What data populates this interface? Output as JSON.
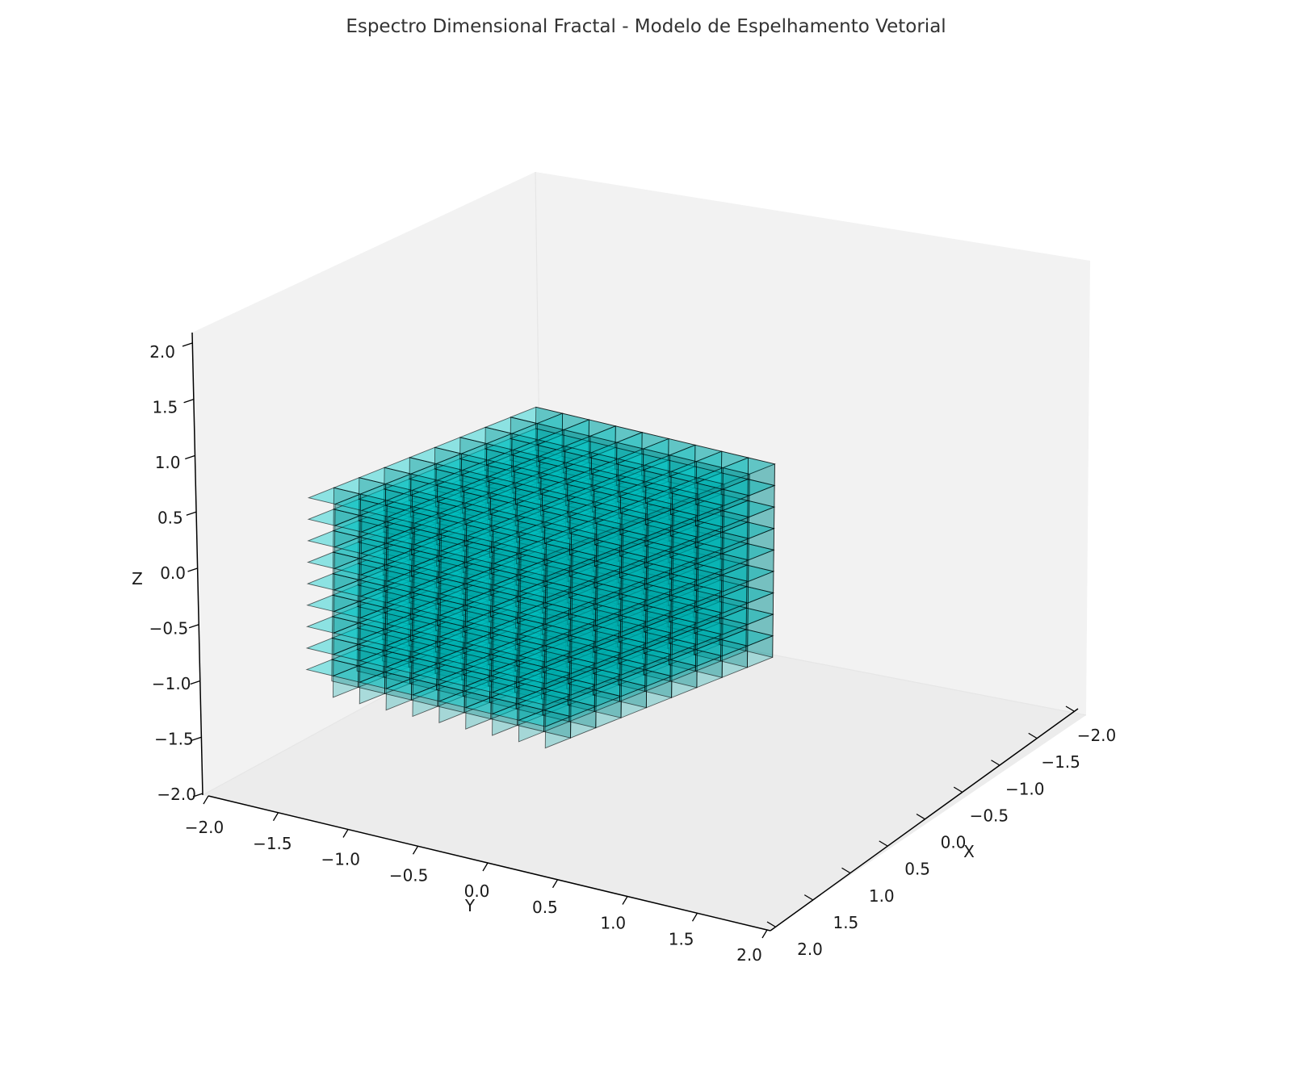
{
  "chart_data": {
    "type": "voxel-3d",
    "title": "Espectro Dimensional Fractal - Modelo de Espelhamento Vetorial",
    "xlabel": "X",
    "ylabel": "Y",
    "zlabel": "Z",
    "xlim": [
      -2.0,
      2.0
    ],
    "ylim": [
      -2.0,
      2.0
    ],
    "zlim": [
      -2.0,
      2.0
    ],
    "x_ticks": [
      "−2.0",
      "−1.5",
      "−1.0",
      "−0.5",
      "0.0",
      "0.5",
      "1.0",
      "1.5",
      "2.0"
    ],
    "y_ticks": [
      "−2.0",
      "−1.5",
      "−1.0",
      "−0.5",
      "0.0",
      "0.5",
      "1.0",
      "1.5",
      "2.0"
    ],
    "z_ticks": [
      "−2.0",
      "−1.5",
      "−1.0",
      "−0.5",
      "0.0",
      "0.5",
      "1.0",
      "1.5",
      "2.0"
    ],
    "voxel_grid": {
      "nx": 9,
      "ny": 9,
      "nz": 9,
      "x_range": [
        -1.5,
        1.5
      ],
      "y_range": [
        -1.5,
        1.5
      ],
      "z_range": [
        -1.5,
        1.5
      ]
    },
    "voxel_color": "#00cccc",
    "edge_color": "#000000",
    "pane_color": "#f2f2f2",
    "grid": false
  }
}
